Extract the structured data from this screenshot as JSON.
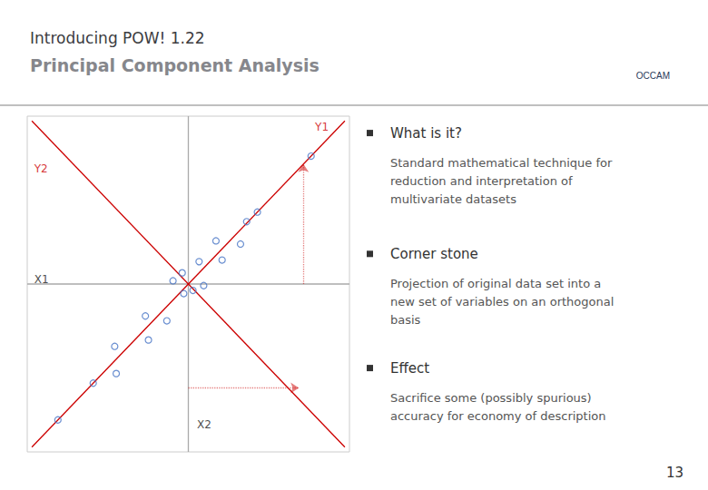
{
  "chart_data": {
    "type": "scatter",
    "title": "Introducing POW! 1.22",
    "subtitle": "Principal Component Analysis",
    "x": [
      -0.85,
      -0.62,
      -0.47,
      -0.48,
      -0.26,
      -0.28,
      -0.14,
      -0.03,
      -0.1,
      0.03,
      -0.04,
      0.1,
      0.07,
      0.22,
      0.18,
      0.34,
      0.38,
      0.45,
      0.8
    ],
    "values": [
      -0.85,
      -0.62,
      -0.56,
      -0.39,
      -0.35,
      -0.2,
      -0.23,
      -0.06,
      0.02,
      -0.04,
      0.07,
      -0.01,
      0.14,
      0.15,
      0.27,
      0.25,
      0.39,
      0.45,
      0.8
    ],
    "color": "#4472c4",
    "marker": "circle",
    "xlim": [
      -1.05,
      1.05
    ],
    "ylim": [
      -1.05,
      1.05
    ],
    "xticks": [],
    "yticks": [],
    "tick_labels": false,
    "grid": false,
    "lines": [
      {
        "x": [
          -1.05,
          1.05
        ],
        "y": [
          0,
          0
        ],
        "color": "#aaaaaa",
        "line_style": "solid"
      },
      {
        "x": [
          0,
          0
        ],
        "y": [
          -1.05,
          1.05
        ],
        "color": "#aaaaaa",
        "line_style": "solid"
      },
      {
        "x": [
          -1.02,
          1.02
        ],
        "y": [
          -1.02,
          1.02
        ],
        "color": "#cc0000",
        "line_style": "solid"
      },
      {
        "x": [
          -1.02,
          1.02
        ],
        "y": [
          1.02,
          -1.02
        ],
        "color": "#cc0000",
        "line_style": "solid"
      }
    ],
    "arrows": [
      {
        "from": [
          0.75,
          0.0
        ],
        "to": [
          0.75,
          0.75
        ],
        "color": "#cc0000",
        "line_style": "dotted"
      },
      {
        "from": [
          0.0,
          -0.65
        ],
        "to": [
          0.72,
          -0.65
        ],
        "color": "#cc0000",
        "line_style": "dotted"
      }
    ],
    "annotations": [
      {
        "text": "Y2",
        "x": -1.01,
        "y": 0.72,
        "color": "#cc0000"
      },
      {
        "text": "Y1",
        "x": 0.82,
        "y": 0.98,
        "color": "#cc0000"
      },
      {
        "text": "X1",
        "x": -1.01,
        "y": 0.03,
        "color": "#1a1a1a"
      },
      {
        "text": "X2",
        "x": 0.05,
        "y": -0.88,
        "color": "#1a1a1a"
      }
    ],
    "text_panel": [
      {
        "header": "What is it?",
        "body": "Standard mathematical technique for\nreduction and interpretation of\nmultivariate datasets"
      },
      {
        "header": "Corner stone",
        "body": "Projection of original data set into a\nnew set of variables on an orthogonal\nbasis"
      },
      {
        "header": "Effect",
        "body": "Sacrifice some (possibly spurious)\naccuracy for economy of description"
      }
    ],
    "logo_text": "OCCAM",
    "page_number": "13"
  }
}
